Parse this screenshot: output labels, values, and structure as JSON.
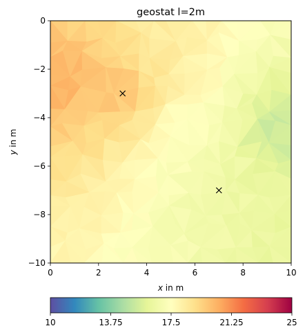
{
  "chart_data": {
    "type": "heatmap",
    "title": "geostat l=2m",
    "xlabel_var": "x",
    "xlabel_unit": " in m",
    "ylabel_var": "y",
    "ylabel_unit": " in m",
    "xlim": [
      0,
      10
    ],
    "ylim": [
      -10,
      0
    ],
    "xticks": [
      0,
      2,
      4,
      6,
      8,
      10
    ],
    "yticks": [
      0,
      -2,
      -4,
      -6,
      -8,
      -10
    ],
    "xtick_labels": [
      "0",
      "2",
      "4",
      "6",
      "8",
      "10"
    ],
    "ytick_labels": [
      "0",
      "−2",
      "−4",
      "−6",
      "−8",
      "−10"
    ],
    "colormap": "Spectral_r",
    "colormap_stops": [
      "#5e4fa2",
      "#3288bd",
      "#66c2a5",
      "#abdda4",
      "#e6f598",
      "#ffffbf",
      "#fee08b",
      "#fdae61",
      "#f46d43",
      "#d53e4f",
      "#9e0142"
    ],
    "field_trend": {
      "value_at_x0": 20.6,
      "value_at_x10": 15.2,
      "field_samples": [
        {
          "x": 0.5,
          "y": -2.5,
          "value": 20.6
        },
        {
          "x": 3.0,
          "y": -3.0,
          "value": 20.0
        },
        {
          "x": 4.5,
          "y": -1.0,
          "value": 18.4
        },
        {
          "x": 5.5,
          "y": -5.0,
          "value": 17.2
        },
        {
          "x": 7.0,
          "y": -7.0,
          "value": 16.4
        },
        {
          "x": 9.5,
          "y": -4.5,
          "value": 15.0
        },
        {
          "x": 9.5,
          "y": -9.5,
          "value": 16.2
        }
      ]
    },
    "markers": [
      {
        "x": 3,
        "y": -3,
        "symbol": "x"
      },
      {
        "x": 7,
        "y": -7,
        "symbol": "x"
      }
    ],
    "colorbar": {
      "min": 10,
      "max": 25,
      "ticks": [
        10,
        13.75,
        17.5,
        21.25,
        25
      ],
      "tick_labels": [
        "10",
        "13.75",
        "17.5",
        "21.25",
        "25"
      ],
      "orientation": "horizontal"
    }
  }
}
